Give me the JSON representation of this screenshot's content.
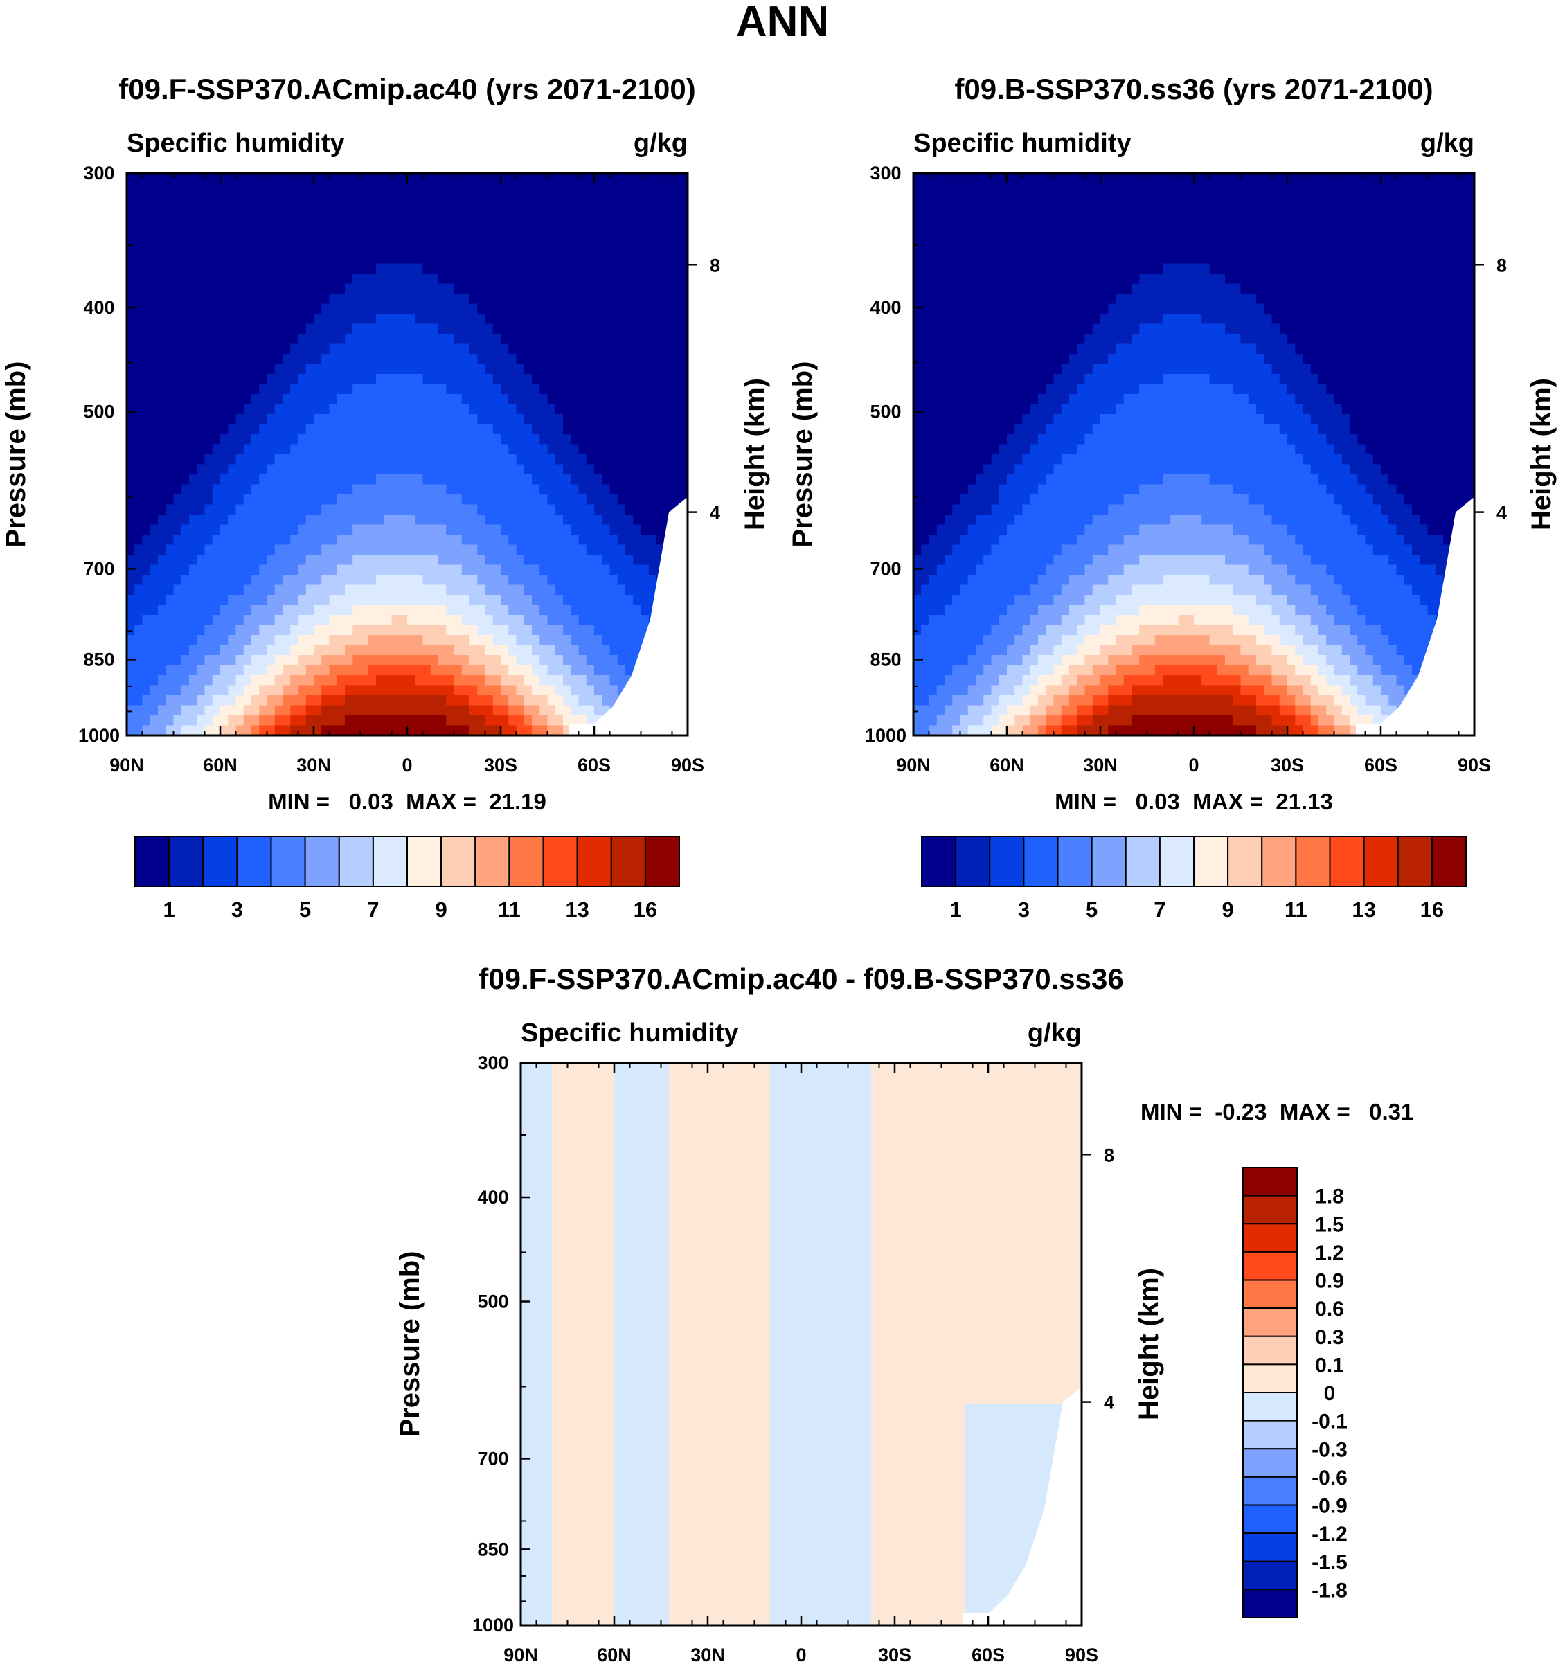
{
  "figure_title": "ANN",
  "chart_data": [
    {
      "type": "heatmap",
      "title": "f09.F-SSP370.ACmip.ac40 (yrs 2071-2100)",
      "left_subtitle": "Specific humidity",
      "right_subtitle": "g/kg",
      "ylabel": "Pressure (mb)",
      "ylabel_right": "Height (km)",
      "yticks": [
        "300",
        "400",
        "500",
        "700",
        "850",
        "1000"
      ],
      "yticks_right": [
        "8",
        "4"
      ],
      "xticks": [
        "90N",
        "60N",
        "30N",
        "0",
        "30S",
        "60S",
        "90S"
      ],
      "ylim": [
        1000,
        300
      ],
      "xlim": [
        90,
        -90
      ],
      "stats": "MIN =   0.03  MAX =  21.19",
      "min": 0.03,
      "max": 21.19,
      "colorbar_labels": [
        "1",
        "3",
        "5",
        "7",
        "9",
        "11",
        "13",
        "16"
      ]
    },
    {
      "type": "heatmap",
      "title": "f09.B-SSP370.ss36 (yrs 2071-2100)",
      "left_subtitle": "Specific humidity",
      "right_subtitle": "g/kg",
      "ylabel": "Pressure (mb)",
      "ylabel_right": "Height (km)",
      "yticks": [
        "300",
        "400",
        "500",
        "700",
        "850",
        "1000"
      ],
      "yticks_right": [
        "8",
        "4"
      ],
      "xticks": [
        "90N",
        "60N",
        "30N",
        "0",
        "30S",
        "60S",
        "90S"
      ],
      "ylim": [
        1000,
        300
      ],
      "xlim": [
        90,
        -90
      ],
      "stats": "MIN =   0.03  MAX =  21.13",
      "min": 0.03,
      "max": 21.13,
      "colorbar_labels": [
        "1",
        "3",
        "5",
        "7",
        "9",
        "11",
        "13",
        "16"
      ]
    },
    {
      "type": "heatmap",
      "title": "f09.F-SSP370.ACmip.ac40 - f09.B-SSP370.ss36",
      "left_subtitle": "Specific humidity",
      "right_subtitle": "g/kg",
      "ylabel": "Pressure (mb)",
      "ylabel_right": "Height (km)",
      "yticks": [
        "300",
        "400",
        "500",
        "700",
        "850",
        "1000"
      ],
      "yticks_right": [
        "8",
        "4"
      ],
      "xticks": [
        "90N",
        "60N",
        "30N",
        "0",
        "30S",
        "60S",
        "90S"
      ],
      "ylim": [
        1000,
        300
      ],
      "xlim": [
        90,
        -90
      ],
      "stats": "MIN =  -0.23  MAX =   0.31",
      "min": -0.23,
      "max": 0.31,
      "colorbar_labels": [
        "1.8",
        "1.5",
        "1.2",
        "0.9",
        "0.6",
        "0.3",
        "0.1",
        "0",
        "-0.1",
        "-0.3",
        "-0.6",
        "-0.9",
        "-1.2",
        "-1.5",
        "-1.8"
      ]
    }
  ],
  "colors": {
    "scale": [
      "#00008c",
      "#0020b8",
      "#0540e6",
      "#2060ff",
      "#4a80ff",
      "#7ea3ff",
      "#b5ceff",
      "#dbeaff",
      "#fff0e1",
      "#ffcfb5",
      "#ffa47e",
      "#ff7846",
      "#ff4a1c",
      "#e22c00",
      "#b82200",
      "#8c0000"
    ],
    "diverging": [
      "#8c0000",
      "#b82200",
      "#e22c00",
      "#ff4a1c",
      "#ff7846",
      "#ffa47e",
      "#ffcfb5",
      "#ffe8d6",
      "#d6e8fd",
      "#b5ceff",
      "#7ea3ff",
      "#4a80ff",
      "#2060ff",
      "#0540e6",
      "#0020b8",
      "#00008c"
    ],
    "diff_pos": "#fde8d7",
    "diff_neg": "#d6e8fb"
  }
}
